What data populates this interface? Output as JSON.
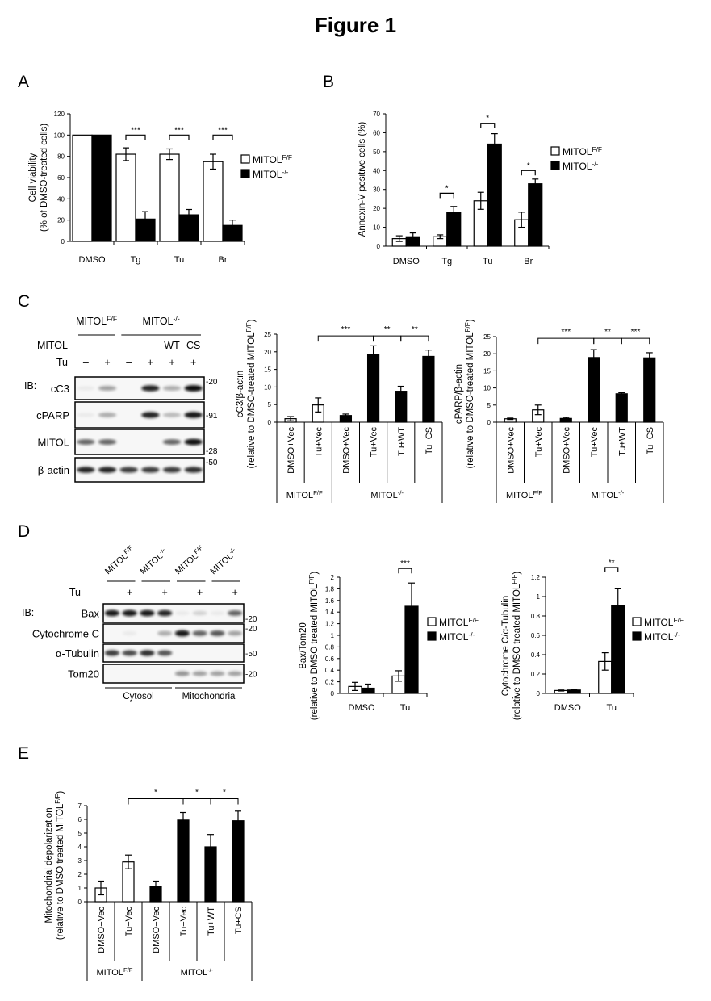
{
  "title": "Figure 1",
  "panels": {
    "A": "A",
    "B": "B",
    "C": "C",
    "D": "D",
    "E": "E"
  },
  "colors": {
    "MITOL_FF": "#ffffff",
    "MITOL_KO": "#000000",
    "stroke": "#000000"
  },
  "blots": [
    {
      "id": "C-blot",
      "panel": "C",
      "ib_label": "IB:",
      "lanes": 6,
      "genotype_headers": [
        {
          "label": "MITOL^{F/F}",
          "lanes": [
            0,
            1
          ]
        },
        {
          "label": "MITOL^{-/-}",
          "lanes": [
            2,
            5
          ]
        }
      ],
      "condition_rows": [
        {
          "label": "MITOL",
          "values": [
            "–",
            "–",
            "–",
            "–",
            "WT",
            "CS"
          ]
        },
        {
          "label": "Tu",
          "values": [
            "–",
            "+",
            "–",
            "+",
            "+",
            "+"
          ]
        }
      ],
      "rows": [
        {
          "label": "cC3",
          "mw": "-20",
          "mw_pos": "top",
          "bands": [
            0.05,
            0.35,
            0,
            0.85,
            0.3,
            0.95
          ]
        },
        {
          "label": "cPARP",
          "mw": "-91",
          "mw_pos": "middle",
          "bands": [
            0.05,
            0.3,
            0,
            0.85,
            0.25,
            0.9
          ]
        },
        {
          "label": "MITOL",
          "mw": "-28",
          "mw_pos": "bottom",
          "bands": [
            0.6,
            0.6,
            0,
            0,
            0.6,
            0.95
          ]
        },
        {
          "label": "β-actin",
          "mw": "-50",
          "mw_pos": "top",
          "bands": [
            0.85,
            0.85,
            0.75,
            0.75,
            0.75,
            0.8
          ]
        }
      ],
      "fraction_labels": []
    },
    {
      "id": "D-blot",
      "panel": "D",
      "ib_label": "IB:",
      "lanes": 8,
      "genotype_headers": [
        {
          "label": "MITOL^{F/F}",
          "lanes": [
            0,
            1
          ]
        },
        {
          "label": "MITOL^{-/-}",
          "lanes": [
            2,
            3
          ]
        },
        {
          "label": "MITOL^{F/F}",
          "lanes": [
            4,
            5
          ]
        },
        {
          "label": "MITOL^{-/-}",
          "lanes": [
            6,
            7
          ]
        }
      ],
      "condition_rows": [
        {
          "label": "Tu",
          "values": [
            "–",
            "+",
            "–",
            "+",
            "–",
            "+",
            "–",
            "+"
          ]
        }
      ],
      "rows": [
        {
          "label": "Bax",
          "mw": "-20",
          "mw_pos": "bottom",
          "bands": [
            0.9,
            0.9,
            0.9,
            0.85,
            0.05,
            0.15,
            0.05,
            0.6
          ]
        },
        {
          "label": "Cytochrome C",
          "mw": "-20",
          "mw_pos": "top",
          "bands": [
            0,
            0.05,
            0,
            0.3,
            0.9,
            0.6,
            0.65,
            0.35
          ]
        },
        {
          "label": "α-Tubulin",
          "mw": "-50",
          "mw_pos": "middle",
          "bands": [
            0.75,
            0.7,
            0.8,
            0.65,
            0,
            0,
            0,
            0
          ]
        },
        {
          "label": "Tom20",
          "mw": "-20",
          "mw_pos": "middle",
          "bands": [
            0,
            0,
            0,
            0,
            0.4,
            0.35,
            0.35,
            0.35
          ]
        }
      ],
      "fraction_labels": [
        {
          "label": "Cytosol",
          "lanes": [
            0,
            3
          ]
        },
        {
          "label": "Mitochondria",
          "lanes": [
            4,
            7
          ]
        }
      ]
    }
  ],
  "chart_data": [
    {
      "id": "A",
      "type": "bar",
      "ylabel": [
        "Cell viability",
        "(% of DMSO-treated cells)"
      ],
      "xlabel": "",
      "ylim": [
        0,
        120
      ],
      "yticks": [
        0,
        20,
        40,
        60,
        80,
        100,
        120
      ],
      "categories": [
        "DMSO",
        "Tg",
        "Tu",
        "Br"
      ],
      "series": [
        {
          "name": "MITOL^{F/F}",
          "color": "#ffffff",
          "values": [
            100,
            82,
            82,
            75
          ],
          "errors": [
            0,
            6,
            5,
            7
          ]
        },
        {
          "name": "MITOL^{-/-}",
          "color": "#000000",
          "values": [
            100,
            21,
            25,
            15
          ],
          "errors": [
            0,
            7,
            5,
            5
          ]
        }
      ],
      "significance": [
        {
          "category": 1,
          "label": "***",
          "level": 100
        },
        {
          "category": 2,
          "label": "***",
          "level": 100
        },
        {
          "category": 3,
          "label": "***",
          "level": 100
        }
      ],
      "legend": "right"
    },
    {
      "id": "B",
      "type": "bar",
      "ylabel": [
        "Annexin-V positive cells (%)"
      ],
      "xlabel": "",
      "ylim": [
        0,
        70
      ],
      "yticks": [
        0,
        10,
        20,
        30,
        40,
        50,
        60,
        70
      ],
      "categories": [
        "DMSO",
        "Tg",
        "Tu",
        "Br"
      ],
      "series": [
        {
          "name": "MITOL^{F/F}",
          "color": "#ffffff",
          "values": [
            4,
            5,
            24,
            14
          ],
          "errors": [
            1.5,
            1,
            4.5,
            4
          ]
        },
        {
          "name": "MITOL^{-/-}",
          "color": "#000000",
          "values": [
            5,
            18,
            54,
            33
          ],
          "errors": [
            2,
            3,
            5.5,
            2.5
          ]
        }
      ],
      "significance": [
        {
          "category": 1,
          "label": "*",
          "level": 28
        },
        {
          "category": 2,
          "label": "*",
          "level": 65
        },
        {
          "category": 3,
          "label": "*",
          "level": 40
        }
      ],
      "legend": "right"
    },
    {
      "id": "C1",
      "type": "bar",
      "ylabel": [
        "cC3/β-actin",
        "(relative to DMSO-treated MITOL^{F/F})"
      ],
      "ylim": [
        0,
        25
      ],
      "yticks": [
        0,
        5,
        10,
        15,
        20,
        25
      ],
      "categories": [
        "DMSO+Vec",
        "Tu+Vec",
        "DMSO+Vec",
        "Tu+Vec",
        "Tu+WT",
        "Tu+CS"
      ],
      "genotype": [
        0,
        0,
        1,
        1,
        1,
        1
      ],
      "genotype_colors": [
        "#ffffff",
        "#000000"
      ],
      "values": [
        1,
        4.9,
        1.9,
        19.2,
        8.8,
        18.7
      ],
      "errors": [
        0.6,
        2,
        0.4,
        2.5,
        1.4,
        1.8
      ],
      "groups": [
        {
          "label": "MITOL^{F/F}",
          "span": [
            0,
            1
          ]
        },
        {
          "label": "MITOL^{-/-}",
          "span": [
            2,
            5
          ]
        }
      ],
      "brackets": [
        {
          "from": 1,
          "to": 3,
          "label": "***",
          "level": 24.5
        },
        {
          "from": 3,
          "to": 4,
          "label": "**",
          "level": 24.5
        },
        {
          "from": 4,
          "to": 5,
          "label": "**",
          "level": 24.5
        }
      ]
    },
    {
      "id": "C2",
      "type": "bar",
      "ylabel": [
        "cPARP/β-actin",
        "(relative to DMSO-treated MITOL^{F/F})"
      ],
      "ylim": [
        0,
        25
      ],
      "yticks": [
        0,
        5,
        10,
        15,
        20,
        25
      ],
      "categories": [
        "DMSO+Vec",
        "Tu+Vec",
        "DMSO+Vec",
        "Tu+Vec",
        "Tu+WT",
        "Tu+CS"
      ],
      "genotype": [
        0,
        0,
        1,
        1,
        1,
        1
      ],
      "genotype_colors": [
        "#ffffff",
        "#000000"
      ],
      "values": [
        1,
        3.6,
        1.1,
        18.9,
        8.3,
        18.8
      ],
      "errors": [
        0.2,
        1.4,
        0.3,
        2.3,
        0.3,
        1.5
      ],
      "groups": [
        {
          "label": "MITOL^{F/F}",
          "span": [
            0,
            1
          ]
        },
        {
          "label": "MITOL^{-/-}",
          "span": [
            2,
            5
          ]
        }
      ],
      "brackets": [
        {
          "from": 1,
          "to": 3,
          "label": "***",
          "level": 24.5
        },
        {
          "from": 3,
          "to": 4,
          "label": "**",
          "level": 24.5
        },
        {
          "from": 4,
          "to": 5,
          "label": "***",
          "level": 24.5
        }
      ]
    },
    {
      "id": "D1",
      "type": "bar",
      "ylabel": [
        "Bax/Tom20",
        "(relative to DMSO treated MITOL^{F/F})"
      ],
      "ylim": [
        0,
        2
      ],
      "yticks": [
        0,
        0.2,
        0.4,
        0.6,
        0.8,
        1,
        1.2,
        1.4,
        1.6,
        1.8,
        2
      ],
      "categories": [
        "DMSO",
        "Tu"
      ],
      "series": [
        {
          "name": "MITOL^{F/F}",
          "color": "#ffffff",
          "values": [
            0.12,
            0.3
          ],
          "errors": [
            0.07,
            0.09
          ]
        },
        {
          "name": "MITOL^{-/-}",
          "color": "#000000",
          "values": [
            0.09,
            1.5
          ],
          "errors": [
            0.07,
            0.4
          ]
        }
      ],
      "significance": [
        {
          "category": 1,
          "label": "***",
          "level": 2.15
        }
      ],
      "legend": "right"
    },
    {
      "id": "D2",
      "type": "bar",
      "ylabel": [
        "Cytochrome C/α-Tubulin",
        "(relative to DMSO treated MITOL^{F/F})"
      ],
      "ylim": [
        0,
        1.2
      ],
      "yticks": [
        0,
        0.2,
        0.4,
        0.6,
        0.8,
        1,
        1.2
      ],
      "categories": [
        "DMSO",
        "Tu"
      ],
      "series": [
        {
          "name": "MITOL^{F/F}",
          "color": "#ffffff",
          "values": [
            0.03,
            0.33
          ],
          "errors": [
            0.005,
            0.09
          ]
        },
        {
          "name": "MITOL^{-/-}",
          "color": "#000000",
          "values": [
            0.035,
            0.91
          ],
          "errors": [
            0.005,
            0.17
          ]
        }
      ],
      "significance": [
        {
          "category": 1,
          "label": "**",
          "level": 1.3
        }
      ],
      "legend": "right"
    },
    {
      "id": "E",
      "type": "bar",
      "ylabel": [
        "Mitochondrial depolarization",
        "(relative to DMSO treated MITOL^{F/F})"
      ],
      "ylim": [
        0,
        7
      ],
      "yticks": [
        0,
        1,
        2,
        3,
        4,
        5,
        6,
        7
      ],
      "categories": [
        "DMSO+Vec",
        "Tu+Vec",
        "DMSO+Vec",
        "Tu+Vec",
        "Tu+WT",
        "Tu+CS"
      ],
      "genotype": [
        0,
        0,
        1,
        1,
        1,
        1
      ],
      "genotype_colors": [
        "#ffffff",
        "#000000"
      ],
      "values": [
        1,
        2.9,
        1.1,
        5.95,
        4,
        5.9
      ],
      "errors": [
        0.5,
        0.5,
        0.4,
        0.55,
        0.9,
        0.7
      ],
      "groups": [
        {
          "label": "MITOL^{F/F}",
          "span": [
            0,
            1
          ]
        },
        {
          "label": "MITOL^{-/-}",
          "span": [
            2,
            5
          ]
        }
      ],
      "brackets": [
        {
          "from": 1,
          "to": 3,
          "label": "*",
          "level": 7.5
        },
        {
          "from": 3,
          "to": 4,
          "label": "*",
          "level": 7.5
        },
        {
          "from": 4,
          "to": 5,
          "label": "*",
          "level": 7.5
        }
      ]
    }
  ]
}
